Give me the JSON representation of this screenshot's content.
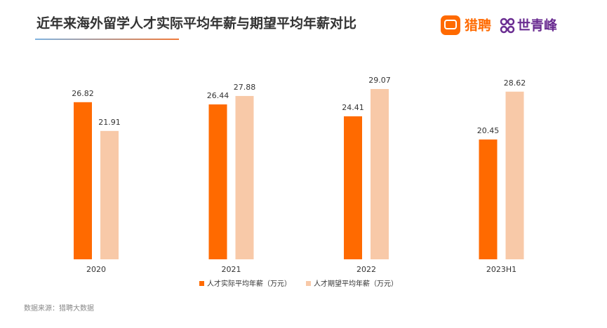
{
  "chart_data": {
    "type": "bar",
    "title": "近年来海外留学人才实际平均年薪与期望平均年薪对比",
    "logos": [
      "猎聘",
      "世青峰"
    ],
    "categories": [
      "2020",
      "2021",
      "2022",
      "2023H1"
    ],
    "series": [
      {
        "name": "人才实际平均年薪（万元）",
        "color": "#ff6a00",
        "values": [
          26.82,
          26.44,
          24.41,
          20.45
        ]
      },
      {
        "name": "人才期望平均年薪（万元）",
        "color": "#f8c9a8",
        "values": [
          21.91,
          27.88,
          29.07,
          28.62
        ]
      }
    ],
    "source": "数据来源：猎聘大数据"
  }
}
